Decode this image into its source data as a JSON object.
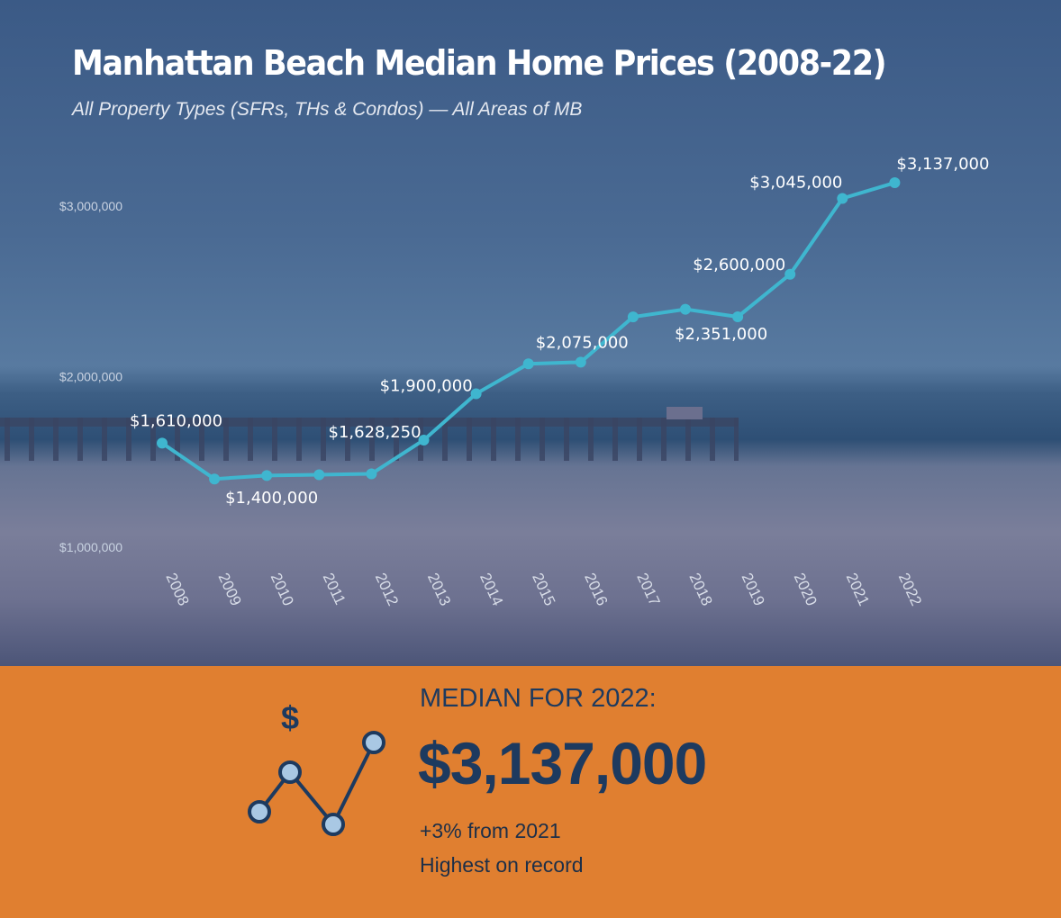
{
  "header": {
    "title": "Manhattan Beach Median Home Prices (2008-22)",
    "subtitle": "All Property Types (SFRs, THs & Condos) — All Areas of MB"
  },
  "chart_data": {
    "type": "line",
    "title": "Manhattan Beach Median Home Prices (2008-22)",
    "subtitle": "All Property Types (SFRs, THs & Condos) — All Areas of MB",
    "categories": [
      "2008",
      "2009",
      "2010",
      "2011",
      "2012",
      "2013",
      "2014",
      "2015",
      "2016",
      "2017",
      "2018",
      "2019",
      "2020",
      "2021",
      "2022"
    ],
    "values": [
      1610000,
      1400000,
      1420000,
      1425000,
      1430000,
      1628250,
      1900000,
      2075000,
      2085000,
      2350000,
      2395000,
      2351000,
      2600000,
      3045000,
      3137000
    ],
    "data_labels": {
      "0": "$1,610,000",
      "1": "$1,400,000",
      "5": "$1,628,250",
      "6": "$1,900,000",
      "7": "$2,075,000",
      "11": "$2,351,000",
      "12": "$2,600,000",
      "13": "$3,045,000",
      "14": "$3,137,000"
    },
    "yticks": [
      {
        "value": 1000000,
        "label": "$1,000,000"
      },
      {
        "value": 2000000,
        "label": "$2,000,000"
      },
      {
        "value": 3000000,
        "label": "$3,000,000"
      }
    ],
    "grid": false,
    "line_color": "#3fb6cf"
  },
  "summary": {
    "label": "MEDIAN FOR 2022:",
    "value": "$3,137,000",
    "change": "+3% from 2021",
    "note": "Highest on record",
    "icon": "dollar-trend-line-icon"
  },
  "colors": {
    "panel": "#e07f30",
    "navy": "#1d3a5f",
    "accent": "#3fb6cf"
  }
}
